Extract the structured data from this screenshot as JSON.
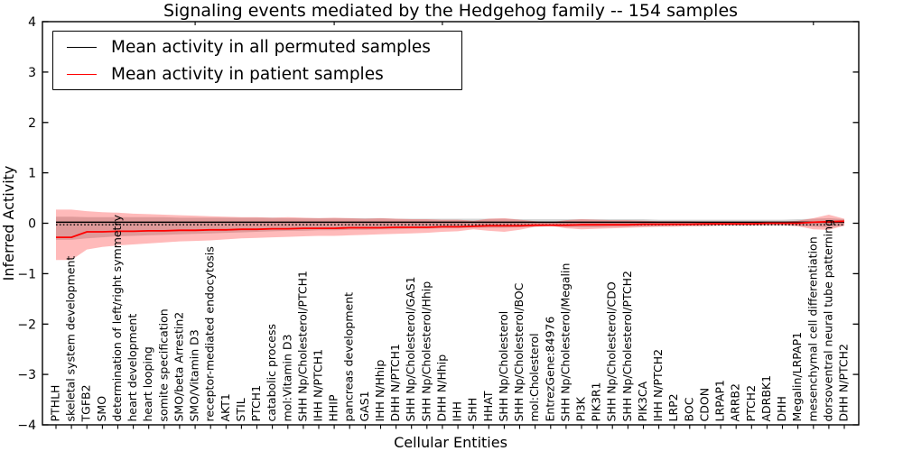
{
  "figure": {
    "title": "Signaling events mediated by the Hedgehog family -- 154 samples",
    "legend": {
      "entries": [
        {
          "label": "Mean activity in all permuted samples",
          "color": "#000000"
        },
        {
          "label": "Mean activity in patient samples",
          "color": "#ff0000"
        }
      ]
    }
  },
  "chart_data": {
    "type": "line",
    "title": "Signaling events mediated by the Hedgehog family -- 154 samples",
    "xlabel": "Cellular Entities",
    "ylabel": "Inferred Activity",
    "ylim": [
      -4,
      4
    ],
    "yticks": [
      4,
      3,
      2,
      1,
      0,
      -1,
      -2,
      -3,
      -4
    ],
    "grid": false,
    "legend_position": "upper left",
    "colors": {
      "patient_line": "#ff0000",
      "permuted_line": "#000000",
      "patient_band": "#ff0000",
      "permuted_band": "#aaaaaa"
    },
    "band_opacity": {
      "patient": 0.27,
      "permuted": 0.5
    },
    "categories": [
      "PTHLH",
      "skeletal system development",
      "TGFB2",
      "SMO",
      "determination of left/right symmetry",
      "heart development",
      "heart looping",
      "somite specification",
      "SMO/beta Arrestin2",
      "SMO/Vitamin D3",
      "receptor-mediated endocytosis",
      "AKT1",
      "STIL",
      "PTCH1",
      "catabolic process",
      "mol:Vitamin D3",
      "SHH Np/Cholesterol/PTCH1",
      "IHH N/PTCH1",
      "HHIP",
      "pancreas development",
      "GAS1",
      "IHH N/Hhip",
      "DHH N/PTCH1",
      "SHH Np/Cholesterol/GAS1",
      "SHH Np/Cholesterol/Hhip",
      "DHH N/Hhip",
      "IHH",
      "SHH",
      "HHAT",
      "SHH Np/Cholesterol",
      "SHH Np/Cholesterol/BOC",
      "mol:Cholesterol",
      "EntrezGene:84976",
      "SHH Np/Cholesterol/Megalin",
      "PI3K",
      "PIK3R1",
      "SHH Np/Cholesterol/CDO",
      "SHH Np/Cholesterol/PTCH2",
      "PIK3CA",
      "IHH N/PTCH2",
      "LRP2",
      "BOC",
      "CDON",
      "LRPAP1",
      "ARRB2",
      "PTCH2",
      "ADRBK1",
      "DHH",
      "Megalin/LRPAP1",
      "mesenchymal cell differentiation",
      "dorsoventral neural tube patterning",
      "DHH N/PTCH2"
    ],
    "series": [
      {
        "name": "Mean activity in all permuted samples",
        "color": "#000000",
        "style": "solid",
        "constant_value": 0.02
      },
      {
        "name": "Permuted samples median (dotted)",
        "color": "#000000",
        "style": "dotted",
        "constant_value": -0.03
      },
      {
        "name": "Mean activity in patient samples",
        "color": "#ff0000",
        "style": "solid",
        "values": [
          -0.28,
          -0.28,
          -0.17,
          -0.17,
          -0.16,
          -0.16,
          -0.15,
          -0.15,
          -0.14,
          -0.14,
          -0.13,
          -0.13,
          -0.12,
          -0.12,
          -0.11,
          -0.11,
          -0.1,
          -0.1,
          -0.1,
          -0.09,
          -0.09,
          -0.09,
          -0.08,
          -0.08,
          -0.08,
          -0.07,
          -0.07,
          -0.06,
          -0.05,
          -0.05,
          -0.05,
          -0.04,
          -0.04,
          -0.04,
          -0.03,
          -0.03,
          -0.03,
          -0.03,
          -0.02,
          -0.02,
          -0.02,
          -0.02,
          -0.01,
          -0.01,
          -0.01,
          -0.01,
          0.0,
          0.0,
          0.0,
          0.02,
          0.03,
          0.04
        ]
      }
    ],
    "patient_band_upper": [
      0.27,
      0.27,
      0.24,
      0.22,
      0.21,
      0.19,
      0.18,
      0.17,
      0.16,
      0.15,
      0.14,
      0.13,
      0.12,
      0.12,
      0.11,
      0.12,
      0.11,
      0.1,
      0.11,
      0.1,
      0.09,
      0.1,
      0.09,
      0.08,
      0.08,
      0.07,
      0.07,
      0.05,
      0.09,
      0.1,
      0.07,
      0.04,
      0.02,
      0.06,
      0.08,
      0.07,
      0.06,
      0.06,
      0.05,
      0.04,
      0.04,
      0.04,
      0.03,
      0.03,
      0.03,
      0.03,
      0.03,
      0.03,
      0.05,
      0.1,
      0.17,
      0.09
    ],
    "patient_band_lower": [
      -0.73,
      -0.73,
      -0.52,
      -0.47,
      -0.44,
      -0.42,
      -0.4,
      -0.38,
      -0.36,
      -0.35,
      -0.34,
      -0.32,
      -0.3,
      -0.29,
      -0.28,
      -0.27,
      -0.26,
      -0.25,
      -0.25,
      -0.24,
      -0.23,
      -0.22,
      -0.21,
      -0.2,
      -0.19,
      -0.17,
      -0.16,
      -0.12,
      -0.15,
      -0.17,
      -0.13,
      -0.07,
      -0.05,
      -0.1,
      -0.12,
      -0.11,
      -0.1,
      -0.09,
      -0.08,
      -0.07,
      -0.07,
      -0.06,
      -0.06,
      -0.05,
      -0.05,
      -0.05,
      -0.04,
      -0.04,
      -0.06,
      -0.12,
      -0.13,
      -0.05
    ],
    "permuted_band_upper": [
      0.13,
      0.13,
      0.12,
      0.12,
      0.12,
      0.12,
      0.12,
      0.12,
      0.11,
      0.11,
      0.11,
      0.11,
      0.11,
      0.11,
      0.11,
      0.1,
      0.1,
      0.1,
      0.1,
      0.1,
      0.1,
      0.1,
      0.09,
      0.09,
      0.09,
      0.09,
      0.09,
      0.09,
      0.09,
      0.09,
      0.08,
      0.08,
      0.08,
      0.08,
      0.08,
      0.08,
      0.08,
      0.08,
      0.08,
      0.07,
      0.07,
      0.07,
      0.07,
      0.07,
      0.07,
      0.07,
      0.07,
      0.07,
      0.08,
      0.09,
      0.1,
      0.08
    ],
    "permuted_band_lower": [
      -0.33,
      -0.33,
      -0.3,
      -0.28,
      -0.26,
      -0.25,
      -0.24,
      -0.23,
      -0.22,
      -0.21,
      -0.2,
      -0.19,
      -0.18,
      -0.17,
      -0.16,
      -0.15,
      -0.15,
      -0.14,
      -0.14,
      -0.13,
      -0.13,
      -0.12,
      -0.12,
      -0.11,
      -0.11,
      -0.1,
      -0.1,
      -0.09,
      -0.09,
      -0.09,
      -0.08,
      -0.07,
      -0.06,
      -0.07,
      -0.08,
      -0.08,
      -0.07,
      -0.07,
      -0.06,
      -0.06,
      -0.05,
      -0.05,
      -0.05,
      -0.04,
      -0.04,
      -0.04,
      -0.04,
      -0.04,
      -0.05,
      -0.07,
      -0.08,
      -0.05
    ],
    "top_tick_indices": [
      9,
      18,
      25,
      49
    ]
  }
}
